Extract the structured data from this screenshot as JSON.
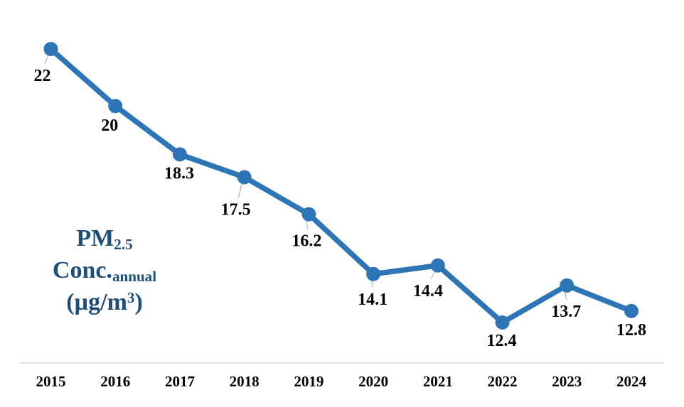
{
  "chart": {
    "axis_title": {
      "line1_main": "PM",
      "line1_sub": "2.5",
      "line2_main": "Conc.",
      "line2_sub": "annual",
      "line3_pre": "(µg/m",
      "line3_sup": "3",
      "line3_post": ")"
    },
    "colors": {
      "line": "#2E75B6",
      "marker": "#2E75B6",
      "axis_line": "#D6D6D6",
      "leader_line": "#A6A6A6",
      "data_label": "#000000",
      "tick_label": "#000000",
      "axis_title": "#1F4E79",
      "background": "#FFFFFF"
    }
  },
  "chart_data": {
    "type": "line",
    "title": "",
    "xlabel": "",
    "ylabel": "PM2.5 Conc.annual (µg/m³)",
    "categories": [
      "2015",
      "2016",
      "2017",
      "2018",
      "2019",
      "2020",
      "2021",
      "2022",
      "2023",
      "2024"
    ],
    "values": [
      22,
      20,
      18.3,
      17.5,
      16.2,
      14.1,
      14.4,
      12.4,
      13.7,
      12.8
    ],
    "data_labels": [
      "22",
      "20",
      "18.3",
      "17.5",
      "16.2",
      "14.1",
      "14.4",
      "12.4",
      "13.7",
      "12.8"
    ],
    "ylim": [
      11,
      23
    ],
    "grid": false,
    "legend": "none",
    "marker": "circle",
    "data_labels_position": "below"
  }
}
